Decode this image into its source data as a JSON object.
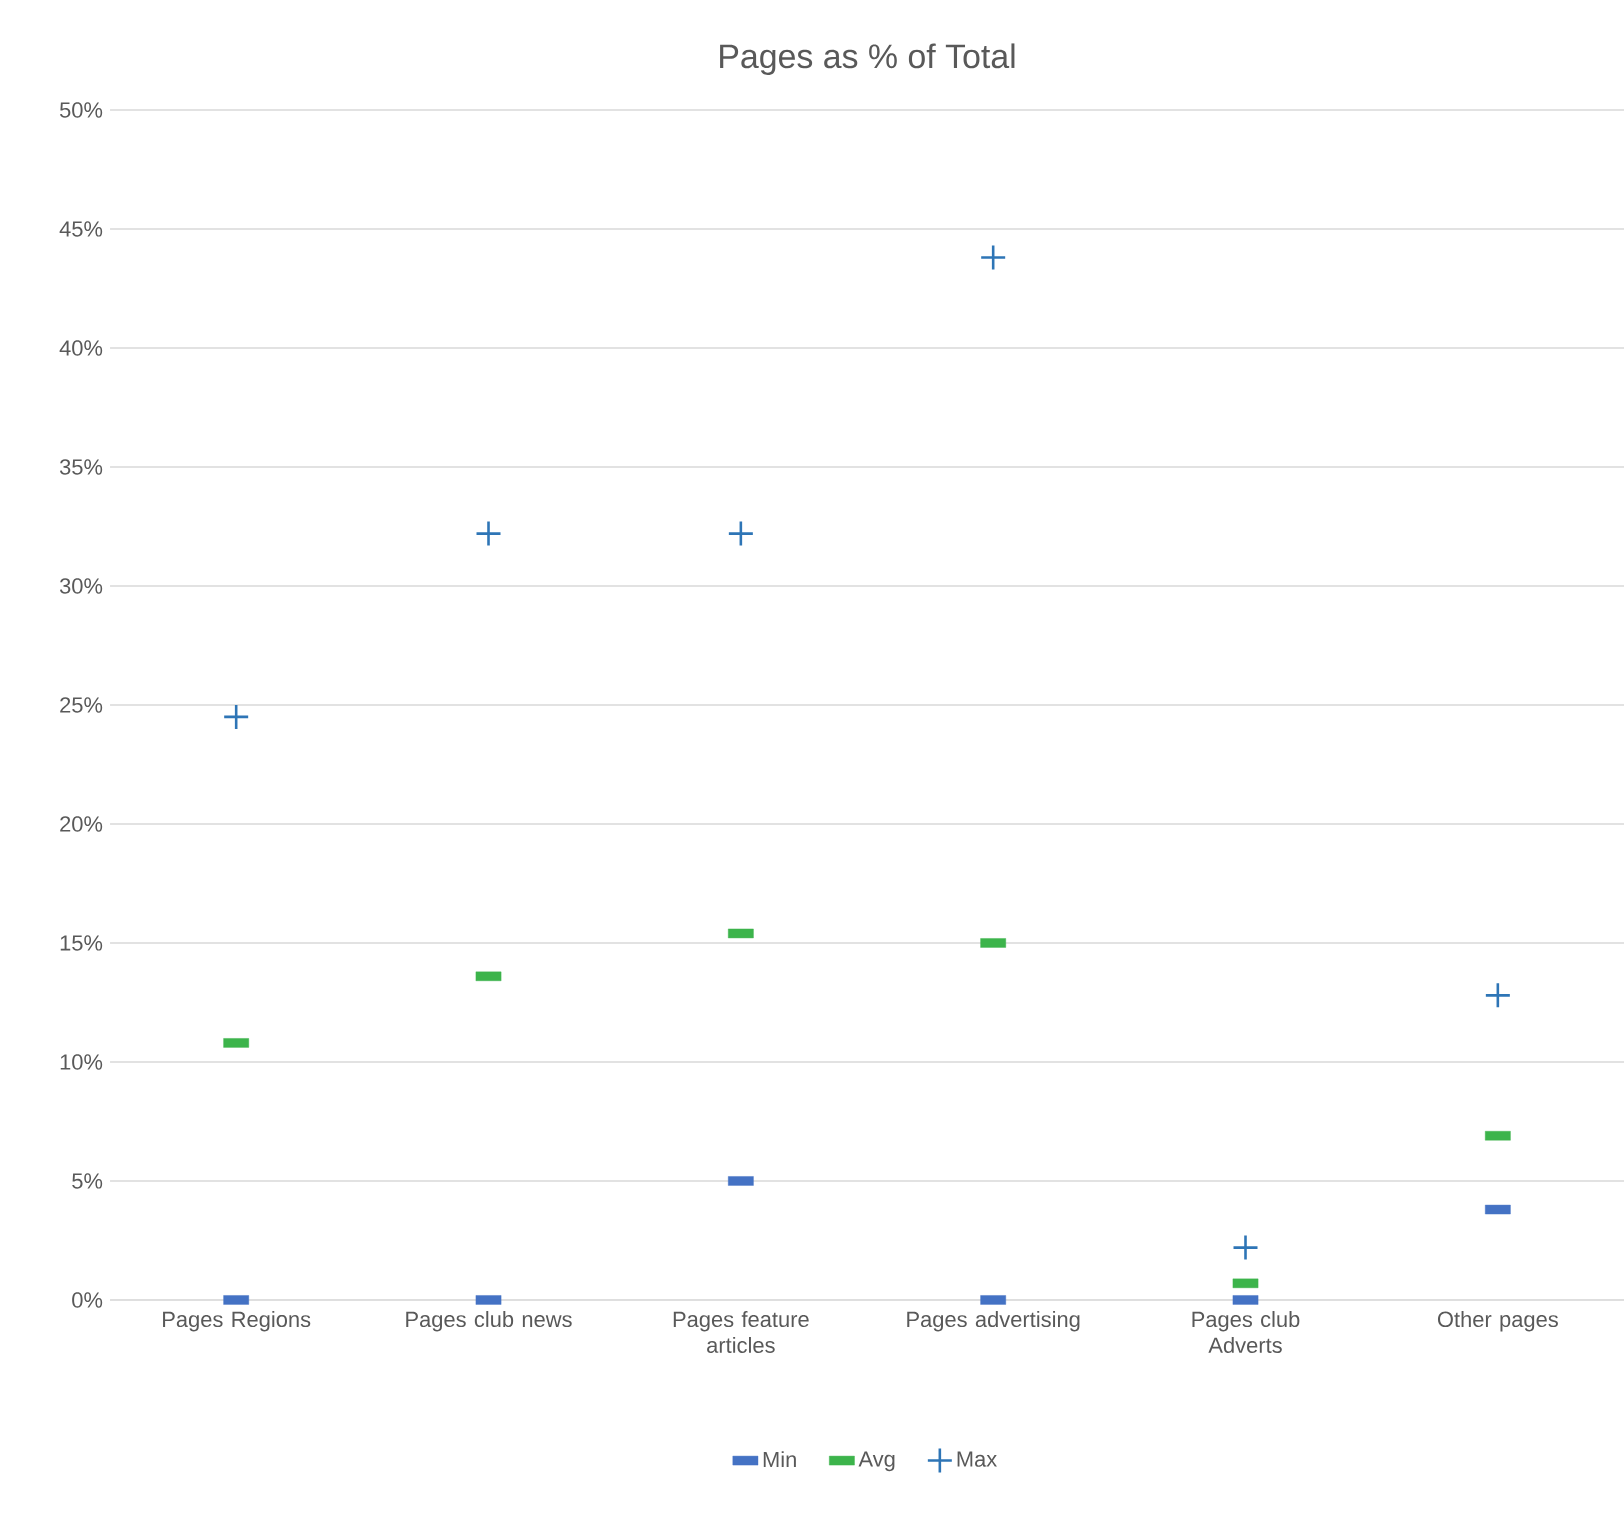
{
  "chart_data": {
    "type": "scatter",
    "title": "Pages as % of Total",
    "categories": [
      "Pages Regions",
      "Pages club news",
      "Pages feature articles",
      "Pages advertising",
      "Pages club Adverts",
      "Other pages"
    ],
    "series": [
      {
        "name": "Min",
        "color": "#4472c4",
        "marker": "square",
        "values": [
          0,
          0,
          5,
          0,
          0,
          3.8
        ]
      },
      {
        "name": "Avg",
        "color": "#3cb44b",
        "marker": "square",
        "values": [
          10.8,
          13.6,
          15.4,
          15.0,
          0.7,
          6.9
        ]
      },
      {
        "name": "Max",
        "color": "#2e75b6",
        "marker": "cross",
        "values": [
          24.5,
          32.2,
          32.2,
          43.8,
          2.2,
          12.8
        ]
      }
    ],
    "ylim": [
      0,
      50
    ],
    "yticks": [
      {
        "value": 0,
        "label": "0%"
      },
      {
        "value": 5,
        "label": "5%"
      },
      {
        "value": 10,
        "label": "10%"
      },
      {
        "value": 15,
        "label": "15%"
      },
      {
        "value": 20,
        "label": "20%"
      },
      {
        "value": 25,
        "label": "25%"
      },
      {
        "value": 30,
        "label": "30%"
      },
      {
        "value": 35,
        "label": "35%"
      },
      {
        "value": 40,
        "label": "40%"
      },
      {
        "value": 45,
        "label": "45%"
      },
      {
        "value": 50,
        "label": "50%"
      }
    ],
    "grid": "y",
    "legend": "bottom"
  }
}
